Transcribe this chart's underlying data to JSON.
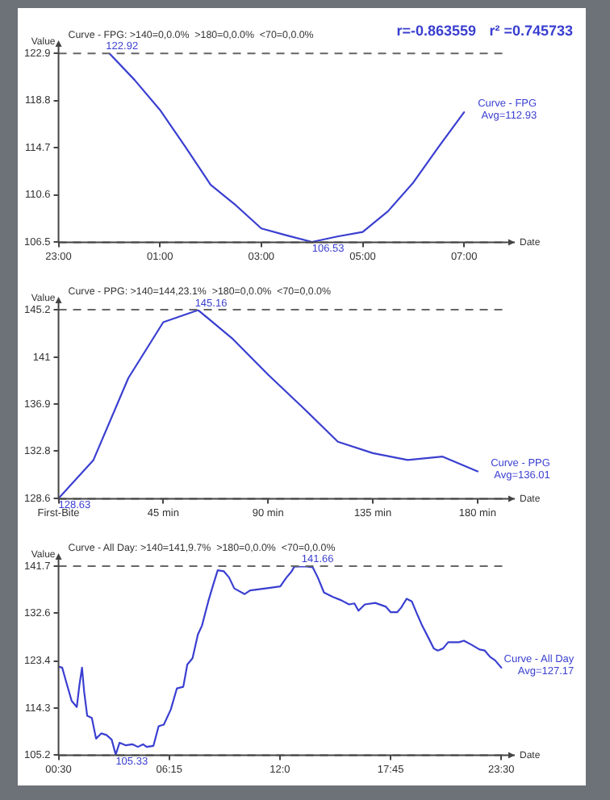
{
  "chart_data": [
    {
      "type": "line",
      "title": "Curve - FPG: >140=0,0.0%  >180=0,0.0%  <70=0,0.0%",
      "xlabel": "Date",
      "ylabel": "Value",
      "marker": "none",
      "line_style": "solid",
      "grid": false,
      "legend": false,
      "xlim": [
        "2000-01-01T23:00",
        "2000-01-02T08:00"
      ],
      "xticks": [
        {
          "value": "2000-01-01T23:00",
          "label": "23:00"
        },
        {
          "value": "2000-01-02T01:00",
          "label": "01:00"
        },
        {
          "value": "2000-01-02T03:00",
          "label": "03:00"
        },
        {
          "value": "2000-01-02T05:00",
          "label": "05:00"
        },
        {
          "value": "2000-01-02T07:00",
          "label": "07:00"
        }
      ],
      "ylim": [
        106.5,
        122.92
      ],
      "yticks": [
        106.5,
        110.6,
        114.7,
        118.8,
        122.9
      ],
      "series": [
        {
          "name": "Curve - FPG",
          "color": "#3a3fd0",
          "x": [
            "2000-01-02T00:00",
            "2000-01-02T00:30",
            "2000-01-02T01:00",
            "2000-01-02T01:30",
            "2000-01-02T02:00",
            "2000-01-02T02:30",
            "2000-01-02T03:00",
            "2000-01-02T03:30",
            "2000-01-02T04:00",
            "2000-01-02T04:30",
            "2000-01-02T05:00",
            "2000-01-02T05:30",
            "2000-01-02T06:00",
            "2000-01-02T06:30",
            "2000-01-02T07:00"
          ],
          "values": [
            122.92,
            120.6,
            118.0,
            114.8,
            111.5,
            109.7,
            107.7,
            107.1,
            106.53,
            107.0,
            107.4,
            109.2,
            111.7,
            114.8,
            117.8
          ]
        }
      ],
      "ref_lines": [
        {
          "axis": "y",
          "value": 122.9,
          "color": "#666666",
          "line_style": "dashed"
        },
        {
          "axis": "y",
          "value": 106.5,
          "color": "#666666",
          "line_style": "dashed"
        }
      ],
      "annotations": [
        "r=-0.863559",
        "r² =0.745733",
        {
          "text": "122.92",
          "x": "2000-01-02T00:00",
          "y": 122.92
        },
        {
          "text": "106.53",
          "x": "2000-01-02T04:00",
          "y": 106.53
        },
        {
          "text": "Avg=112.93",
          "x": "2000-01-02T07:00",
          "y": 117.8
        }
      ]
    },
    {
      "type": "line",
      "title": "Curve - PPG: >140=144,23.1%  >180=0,0.0%  <70=0,0.0%",
      "xlabel": "Date",
      "ylabel": "Value",
      "marker": "none",
      "line_style": "solid",
      "grid": false,
      "legend": false,
      "xlim": [
        0,
        196
      ],
      "xticks": [
        {
          "value": 0,
          "label": "First-Bite"
        },
        {
          "value": 45,
          "label": "45 min"
        },
        {
          "value": 90,
          "label": "90 min"
        },
        {
          "value": 135,
          "label": "135 min"
        },
        {
          "value": 180,
          "label": "180 min"
        }
      ],
      "ylim": [
        128.6,
        145.2
      ],
      "yticks": [
        128.6,
        132.8,
        136.9,
        141.0,
        145.2
      ],
      "series": [
        {
          "name": "Curve - PPG",
          "color": "#3a3fd0",
          "x": [
            0,
            15,
            30,
            45,
            60,
            75,
            90,
            105,
            120,
            135,
            150,
            165,
            180
          ],
          "values": [
            128.63,
            132.0,
            139.2,
            144.1,
            145.16,
            142.6,
            139.5,
            136.6,
            133.6,
            132.6,
            132.0,
            132.3,
            131.0
          ]
        }
      ],
      "ref_lines": [
        {
          "axis": "y",
          "value": 145.2,
          "color": "#666666",
          "line_style": "dashed"
        },
        {
          "axis": "y",
          "value": 128.6,
          "color": "#666666",
          "line_style": "dashed"
        }
      ],
      "annotations": [
        {
          "text": "145.16",
          "x": 60,
          "y": 145.16
        },
        {
          "text": "128.63",
          "x": 0,
          "y": 128.63
        },
        {
          "text": "Avg=136.01",
          "x": 180,
          "y": 131.0
        }
      ]
    },
    {
      "type": "line",
      "title": "Curve - All Day: >140=141,9.7%  >180=0,0.0%  <70=0,0.0%",
      "xlabel": "Date",
      "ylabel": "Value",
      "marker": "none",
      "line_style": "solid",
      "grid": false,
      "legend": false,
      "xlim": [
        0.5,
        24.2
      ],
      "xticks": [
        {
          "value": 0.5,
          "label": "00:30"
        },
        {
          "value": 6.25,
          "label": "06:15"
        },
        {
          "value": 12,
          "label": "12:0"
        },
        {
          "value": 17.75,
          "label": "17:45"
        },
        {
          "value": 23.5,
          "label": "23:30"
        }
      ],
      "ylim": [
        105.2,
        141.7
      ],
      "yticks": [
        105.2,
        114.3,
        123.4,
        132.6,
        141.7
      ],
      "series": [
        {
          "name": "Curve - All Day",
          "color": "#3a3fd0",
          "x": [
            0.5,
            0.69,
            0.91,
            1.18,
            1.45,
            1.58,
            1.72,
            1.83,
            1.99,
            2.23,
            2.45,
            2.72,
            2.99,
            3.26,
            3.47,
            3.67,
            4.0,
            4.35,
            4.62,
            4.89,
            5.08,
            5.43,
            5.7,
            5.97,
            6.33,
            6.65,
            6.98,
            7.19,
            7.46,
            7.74,
            7.95,
            8.28,
            8.55,
            8.77,
            9.09,
            9.36,
            9.63,
            10.17,
            10.45,
            11.26,
            12.02,
            12.34,
            12.61,
            12.75,
            13.29,
            13.7,
            13.97,
            14.29,
            14.78,
            15.19,
            15.59,
            15.87,
            16.08,
            16.41,
            16.95,
            17.49,
            17.76,
            18.09,
            18.3,
            18.58,
            18.85,
            19.12,
            19.39,
            19.71,
            19.99,
            20.2,
            20.47,
            20.74,
            21.29,
            21.56,
            21.96,
            22.37,
            22.64,
            22.91,
            23.18,
            23.5
          ],
          "values": [
            122.3,
            122.1,
            119.2,
            115.7,
            114.5,
            118.6,
            122.1,
            117.5,
            112.8,
            112.4,
            108.4,
            109.4,
            109.1,
            108.2,
            105.33,
            107.6,
            107.1,
            107.3,
            106.8,
            107.3,
            106.8,
            107.0,
            110.8,
            111.1,
            114.0,
            118.1,
            118.4,
            122.7,
            123.9,
            128.5,
            130.2,
            134.9,
            138.3,
            140.9,
            140.7,
            139.5,
            137.4,
            136.3,
            137.0,
            137.4,
            137.8,
            139.5,
            140.7,
            141.6,
            141.66,
            141.5,
            139.5,
            136.6,
            135.7,
            135.1,
            134.3,
            134.5,
            133.1,
            134.3,
            134.6,
            133.9,
            132.8,
            132.8,
            133.7,
            135.4,
            134.9,
            132.5,
            130.2,
            127.9,
            125.8,
            125.4,
            125.8,
            127.0,
            127.0,
            127.3,
            126.5,
            125.6,
            125.4,
            124.2,
            123.5,
            122.1
          ]
        }
      ],
      "ref_lines": [
        {
          "axis": "y",
          "value": 141.7,
          "color": "#666666",
          "line_style": "dashed"
        },
        {
          "axis": "y",
          "value": 105.2,
          "color": "#666666",
          "line_style": "dashed"
        }
      ],
      "annotations": [
        {
          "text": "141.66",
          "x": 13.29,
          "y": 141.66
        },
        {
          "text": "105.33",
          "x": 3.47,
          "y": 105.33
        },
        {
          "text": "Avg=127.17",
          "x": 23.5,
          "y": 122.1
        }
      ]
    }
  ]
}
